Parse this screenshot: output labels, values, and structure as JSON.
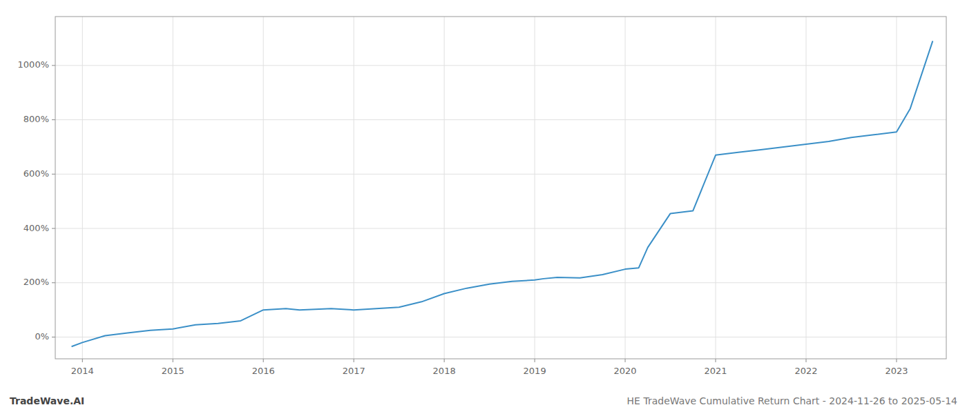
{
  "chart_data": {
    "type": "line",
    "title": "HE TradeWave Cumulative Return Chart - 2024-11-26 to 2025-05-14",
    "annotations": [
      "TradeWave.AI"
    ],
    "x": [
      2013.88,
      2014.0,
      2014.25,
      2014.5,
      2014.75,
      2015.0,
      2015.25,
      2015.5,
      2015.75,
      2016.0,
      2016.25,
      2016.4,
      2016.75,
      2017.0,
      2017.25,
      2017.5,
      2017.75,
      2018.0,
      2018.25,
      2018.5,
      2018.75,
      2019.0,
      2019.1,
      2019.25,
      2019.5,
      2019.75,
      2020.0,
      2020.15,
      2020.25,
      2020.5,
      2020.75,
      2021.0,
      2021.25,
      2021.5,
      2021.75,
      2022.0,
      2022.25,
      2022.5,
      2022.75,
      2023.0,
      2023.15,
      2023.4
    ],
    "values": [
      -35,
      -20,
      5,
      15,
      25,
      30,
      45,
      50,
      60,
      100,
      105,
      100,
      105,
      100,
      105,
      110,
      130,
      160,
      180,
      195,
      205,
      210,
      215,
      220,
      218,
      230,
      250,
      255,
      330,
      455,
      465,
      670,
      680,
      690,
      700,
      710,
      720,
      735,
      745,
      755,
      840,
      1090
    ],
    "color": "#3a8fc7",
    "xlim": [
      2013.7,
      2023.55
    ],
    "ylim": [
      -80,
      1180
    ],
    "xticks": [
      2014,
      2015,
      2016,
      2017,
      2018,
      2019,
      2020,
      2021,
      2022,
      2023
    ],
    "yticks": [
      {
        "value": 0,
        "label": "0%"
      },
      {
        "value": 200,
        "label": "200%"
      },
      {
        "value": 400,
        "label": "400%"
      },
      {
        "value": 600,
        "label": "600%"
      },
      {
        "value": 800,
        "label": "800%"
      },
      {
        "value": 1000,
        "label": "1000%"
      }
    ],
    "grid": true
  }
}
